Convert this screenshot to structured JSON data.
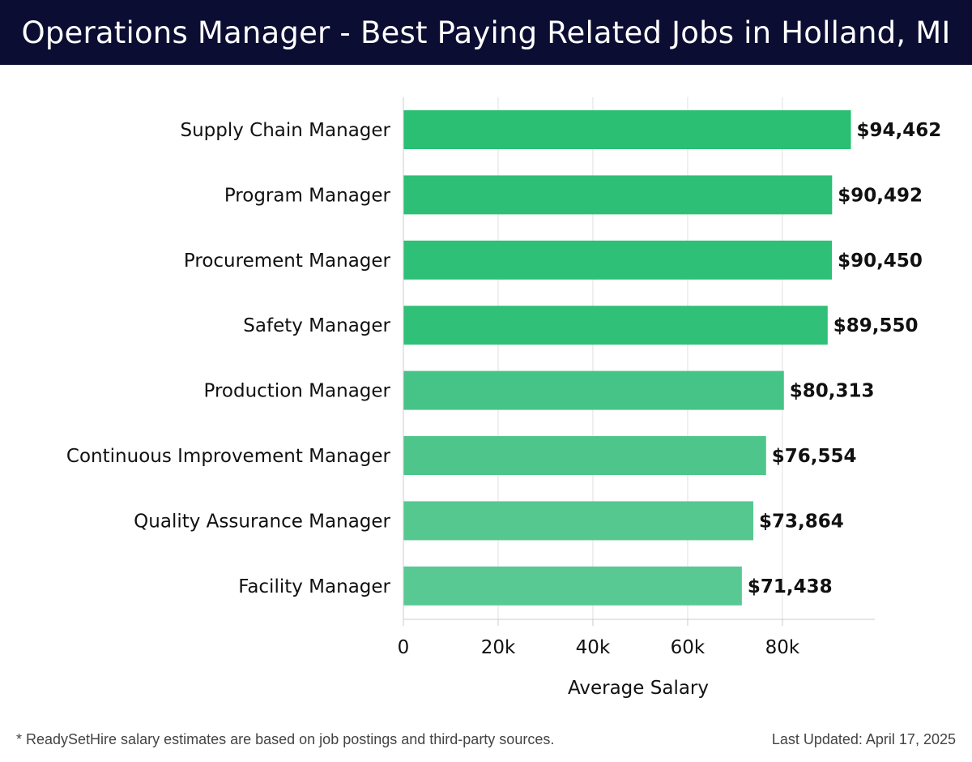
{
  "header": {
    "title": "Operations Manager - Best Paying Related Jobs in Holland, MI"
  },
  "chart_data": {
    "type": "bar",
    "orientation": "horizontal",
    "title": "Operations Manager - Best Paying Related Jobs in Holland, MI",
    "xlabel": "Average Salary",
    "ylabel": "",
    "categories": [
      "Supply Chain Manager",
      "Program Manager",
      "Procurement Manager",
      "Safety Manager",
      "Production Manager",
      "Continuous Improvement Manager",
      "Quality Assurance Manager",
      "Facility Manager"
    ],
    "values": [
      94462,
      90492,
      90450,
      89550,
      80313,
      76554,
      73864,
      71438
    ],
    "value_labels": [
      "$94,462",
      "$90,492",
      "$90,450",
      "$89,550",
      "$80,313",
      "$76,554",
      "$73,864",
      "$71,438"
    ],
    "bar_colors": [
      "#2bbf74",
      "#2cbf75",
      "#2ec076",
      "#30c077",
      "#46c386",
      "#4ec68b",
      "#55c890",
      "#59c993"
    ],
    "xlim": [
      0,
      99500
    ],
    "xticks": [
      0,
      20000,
      40000,
      60000,
      80000
    ],
    "xtick_labels": [
      "0",
      "20k",
      "40k",
      "60k",
      "80k"
    ],
    "grid": true
  },
  "footer": {
    "note": "* ReadySetHire salary estimates are based on job postings and third-party sources.",
    "updated": "Last Updated: April 17, 2025"
  },
  "colors": {
    "header_bg": "#0b0d33",
    "grid": "#e0e0e0",
    "axis": "#cccccc",
    "text": "#111111"
  }
}
